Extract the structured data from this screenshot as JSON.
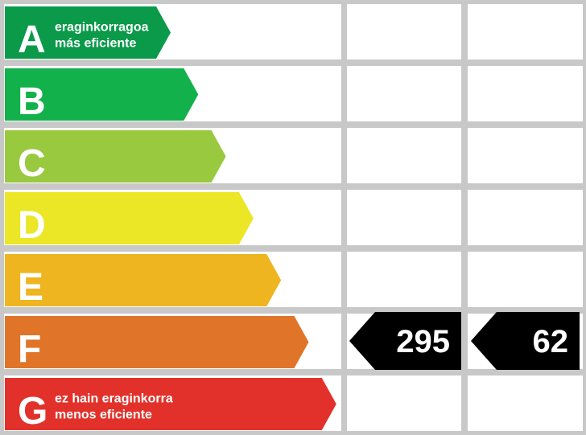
{
  "rows": [
    {
      "letter": "A",
      "line1": "eraginkorragoa",
      "line2": "más eficiente",
      "color": "#0a9a4a"
    },
    {
      "letter": "B",
      "color": "#12b14b"
    },
    {
      "letter": "C",
      "color": "#99c93f"
    },
    {
      "letter": "D",
      "color": "#ebe626"
    },
    {
      "letter": "E",
      "color": "#eeb520"
    },
    {
      "letter": "F",
      "color": "#e0752a",
      "indicators": [
        295,
        62
      ]
    },
    {
      "letter": "G",
      "line1": "ez hain eraginkorra",
      "line2": "menos eficiente",
      "color": "#e2312a"
    }
  ]
}
